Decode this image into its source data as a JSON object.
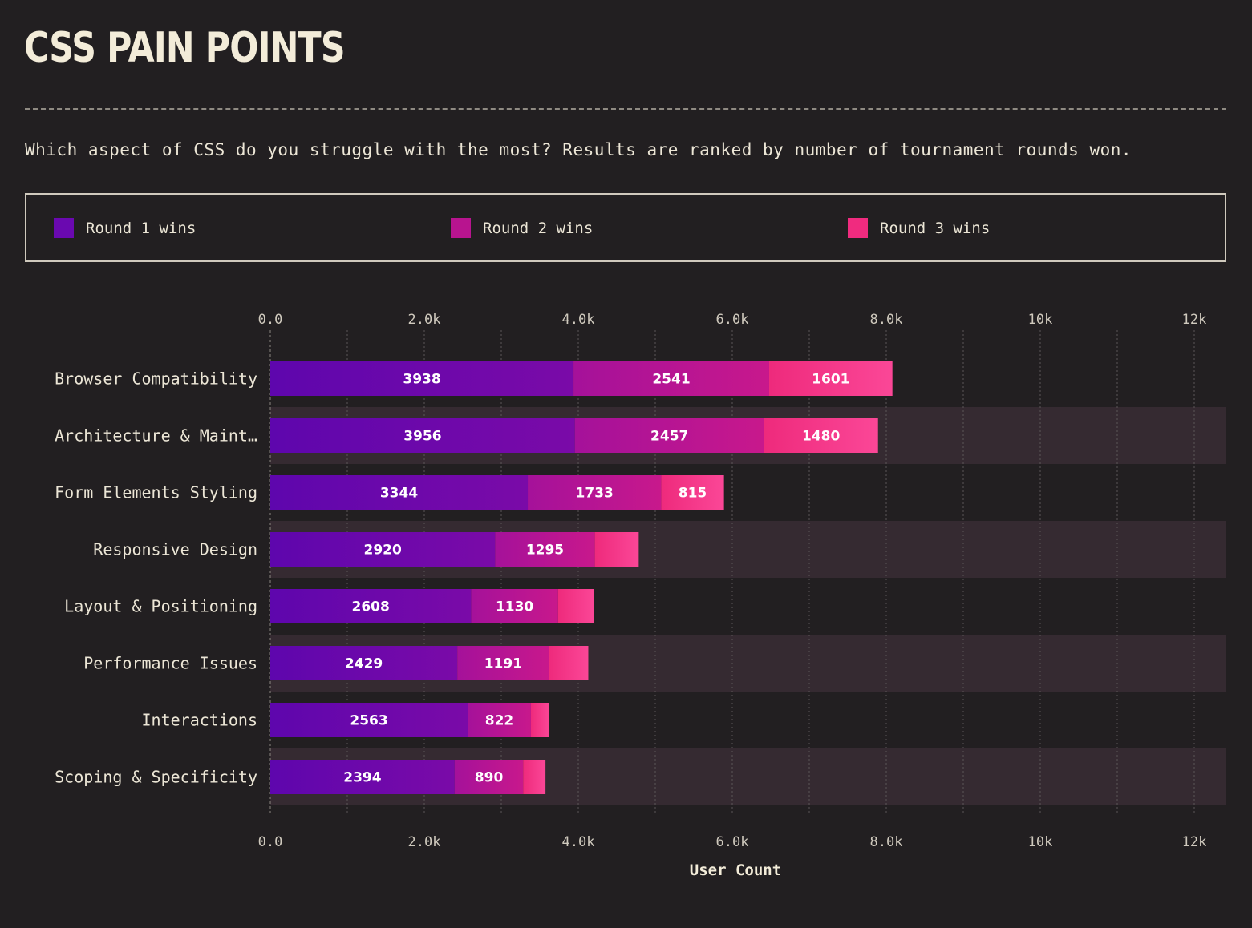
{
  "title": "CSS PAIN POINTS",
  "subtitle": "Which aspect of CSS do you struggle with the most? Results are ranked by number of tournament rounds won.",
  "colors": {
    "background": "#221f21",
    "row_band": "#352a31",
    "round1": "#6a09b0",
    "round2": "#b8148f",
    "round3": "#f02b7f"
  },
  "chart_data": {
    "type": "bar",
    "orientation": "horizontal",
    "stacked": true,
    "categories": [
      "Browser Compatibility",
      "Architecture & Maint…",
      "Form Elements Styling",
      "Responsive Design",
      "Layout & Positioning",
      "Performance Issues",
      "Interactions",
      "Scoping & Specificity"
    ],
    "series": [
      {
        "name": "Round 1 wins",
        "values": [
          3938,
          3956,
          3344,
          2920,
          2608,
          2429,
          2563,
          2394
        ],
        "color": "#6a09b0"
      },
      {
        "name": "Round 2 wins",
        "values": [
          2541,
          2457,
          1733,
          1295,
          1130,
          1191,
          822,
          890
        ],
        "color": "#b8148f"
      },
      {
        "name": "Round 3 wins",
        "values": [
          1601,
          1480,
          815,
          570,
          470,
          510,
          240,
          290
        ],
        "color": "#f02b7f"
      }
    ],
    "value_labels": [
      [
        "3938",
        "2541",
        "1601"
      ],
      [
        "3956",
        "2457",
        "1480"
      ],
      [
        "3344",
        "1733",
        "815"
      ],
      [
        "2920",
        "1295",
        ""
      ],
      [
        "2608",
        "1130",
        ""
      ],
      [
        "2429",
        "1191",
        ""
      ],
      [
        "2563",
        "822",
        ""
      ],
      [
        "2394",
        "890",
        ""
      ]
    ],
    "xlim": [
      0,
      12400
    ],
    "xticks": [
      0,
      2000,
      4000,
      6000,
      8000,
      10000,
      12000
    ],
    "xtick_labels": [
      "0.0",
      "2.0k",
      "4.0k",
      "6.0k",
      "8.0k",
      "10k",
      "12k"
    ],
    "xlabel": "User Count",
    "grid": true,
    "legend_position": "top"
  }
}
